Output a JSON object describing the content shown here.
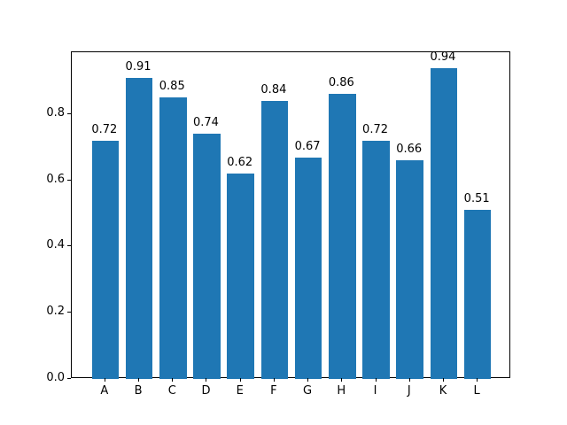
{
  "chart_data": {
    "type": "bar",
    "title": "",
    "xlabel": "",
    "ylabel": "",
    "categories": [
      "A",
      "B",
      "C",
      "D",
      "E",
      "F",
      "G",
      "H",
      "I",
      "J",
      "K",
      "L"
    ],
    "values": [
      0.72,
      0.91,
      0.85,
      0.74,
      0.62,
      0.84,
      0.67,
      0.86,
      0.72,
      0.66,
      0.94,
      0.51
    ],
    "bar_labels": [
      "0.72",
      "0.91",
      "0.85",
      "0.74",
      "0.62",
      "0.84",
      "0.67",
      "0.86",
      "0.72",
      "0.66",
      "0.94",
      "0.51"
    ],
    "yticks": [
      0.0,
      0.2,
      0.4,
      0.6,
      0.8
    ],
    "ytick_labels": [
      "0.0",
      "0.2",
      "0.4",
      "0.6",
      "0.8"
    ],
    "ylim": [
      0,
      0.987
    ],
    "xlim": [
      -0.99,
      11.99
    ],
    "bar_width": 0.8,
    "bar_color": "#1f77b4",
    "background_color": "#ffffff",
    "spine_color": "#000000",
    "grid": false,
    "legend": null
  }
}
